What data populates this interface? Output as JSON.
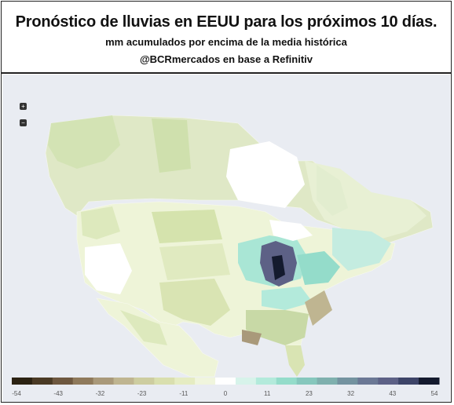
{
  "header": {
    "title": "Pronóstico de lluvias en EEUU para los próximos 10 días.",
    "subtitle": "mm  acumulados por encima de la media histórica",
    "credit": "@BCRmercados en base a Refinitiv"
  },
  "map": {
    "zoom_in_label": "+",
    "zoom_out_label": "−",
    "legend": {
      "ticks": [
        "-54",
        "-43",
        "-32",
        "-23",
        "-11",
        "0",
        "11",
        "23",
        "32",
        "43",
        "54"
      ],
      "colors": [
        "#2b2212",
        "#4a3a25",
        "#6e5840",
        "#8f7a5c",
        "#a9997a",
        "#bfb591",
        "#cdcda0",
        "#d9dfae",
        "#e5ecc2",
        "#f0f5dd",
        "#ffffff",
        "#d7f3ea",
        "#b3eadb",
        "#94dcca",
        "#86c7bd",
        "#7fb0ae",
        "#7493a0",
        "#6b7895",
        "#5d6186",
        "#3d4468",
        "#141a2e"
      ]
    }
  }
}
